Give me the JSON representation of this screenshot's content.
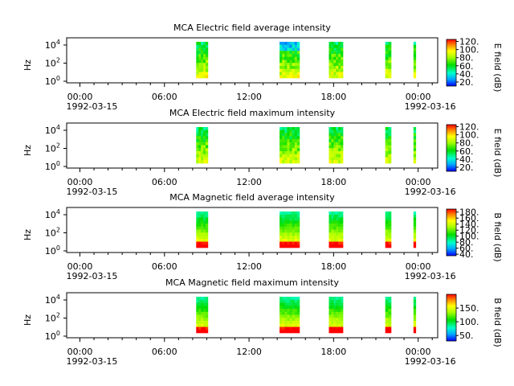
{
  "chart_data": [
    {
      "type": "heatmap",
      "title": "MCA  Electric field average intensity",
      "ylabel": "Hz",
      "ylim": [
        1,
        30000
      ],
      "yscale": "log",
      "ytick_labels": [
        {
          "base": "10",
          "exp": "0"
        },
        {
          "base": "10",
          "exp": "2"
        },
        {
          "base": "10",
          "exp": "4"
        }
      ],
      "xtick_labels": [
        "00:00",
        "06:00",
        "12:00",
        "18:00",
        "00:00"
      ],
      "x_date_labels": [
        "1992-03-15",
        "1992-03-16"
      ],
      "colorbar": {
        "label": "E field (dB)",
        "range": [
          10,
          125
        ],
        "ticks": [
          "20.",
          "40.",
          "60.",
          "80.",
          "100.",
          "120."
        ]
      },
      "data_intervals": [
        {
          "start": "08:15",
          "end": "09:05"
        },
        {
          "start": "14:10",
          "end": "15:35"
        },
        {
          "start": "17:40",
          "end": "18:40"
        },
        {
          "start": "21:40",
          "end": "22:05"
        },
        {
          "start": "23:40",
          "end": "23:48"
        }
      ]
    },
    {
      "type": "heatmap",
      "title": "MCA  Electric field maximum intensity",
      "ylabel": "Hz",
      "ylim": [
        1,
        30000
      ],
      "yscale": "log",
      "ytick_labels": [
        {
          "base": "10",
          "exp": "0"
        },
        {
          "base": "10",
          "exp": "2"
        },
        {
          "base": "10",
          "exp": "4"
        }
      ],
      "xtick_labels": [
        "00:00",
        "06:00",
        "12:00",
        "18:00",
        "00:00"
      ],
      "x_date_labels": [
        "1992-03-15",
        "1992-03-16"
      ],
      "colorbar": {
        "label": "E field (dB)",
        "range": [
          10,
          125
        ],
        "ticks": [
          "20.",
          "40.",
          "60.",
          "80.",
          "100.",
          "120."
        ]
      },
      "data_intervals": [
        {
          "start": "08:15",
          "end": "09:05"
        },
        {
          "start": "14:10",
          "end": "15:35"
        },
        {
          "start": "17:40",
          "end": "18:40"
        },
        {
          "start": "21:40",
          "end": "22:05"
        },
        {
          "start": "23:40",
          "end": "23:48"
        }
      ]
    },
    {
      "type": "heatmap",
      "title": "MCA  Magnetic field average intensity",
      "ylabel": "Hz",
      "ylim": [
        1,
        30000
      ],
      "yscale": "log",
      "ytick_labels": [
        {
          "base": "10",
          "exp": "0"
        },
        {
          "base": "10",
          "exp": "2"
        },
        {
          "base": "10",
          "exp": "4"
        }
      ],
      "xtick_labels": [
        "00:00",
        "06:00",
        "12:00",
        "18:00",
        "00:00"
      ],
      "x_date_labels": [
        "1992-03-15",
        "1992-03-16"
      ],
      "colorbar": {
        "label": "B field (dB)",
        "range": [
          35,
          190
        ],
        "ticks": [
          "40.",
          "60.",
          "80.",
          "100.",
          "120.",
          "140.",
          "160.",
          "180."
        ]
      },
      "data_intervals": [
        {
          "start": "08:15",
          "end": "09:05"
        },
        {
          "start": "14:10",
          "end": "15:35"
        },
        {
          "start": "17:40",
          "end": "18:40"
        },
        {
          "start": "21:40",
          "end": "22:05"
        },
        {
          "start": "23:40",
          "end": "23:48"
        }
      ]
    },
    {
      "type": "heatmap",
      "title": "MCA  Magnetic field maximum intensity",
      "ylabel": "Hz",
      "ylim": [
        1,
        30000
      ],
      "yscale": "log",
      "ytick_labels": [
        {
          "base": "10",
          "exp": "0"
        },
        {
          "base": "10",
          "exp": "2"
        },
        {
          "base": "10",
          "exp": "4"
        }
      ],
      "xtick_labels": [
        "00:00",
        "06:00",
        "12:00",
        "18:00",
        "00:00"
      ],
      "x_date_labels": [
        "1992-03-15",
        "1992-03-16"
      ],
      "colorbar": {
        "label": "B field (dB)",
        "range": [
          30,
          200
        ],
        "ticks": [
          "50.",
          "100.",
          "150."
        ]
      },
      "data_intervals": [
        {
          "start": "08:15",
          "end": "09:05"
        },
        {
          "start": "14:10",
          "end": "15:35"
        },
        {
          "start": "17:40",
          "end": "18:40"
        },
        {
          "start": "21:40",
          "end": "22:05"
        },
        {
          "start": "23:40",
          "end": "23:48"
        }
      ]
    }
  ]
}
